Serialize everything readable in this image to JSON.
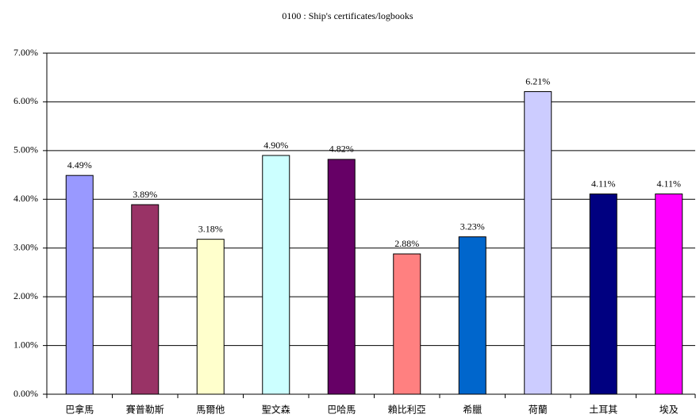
{
  "chart_data": {
    "type": "bar",
    "title": "0100 : Ship's certificates/logbooks",
    "categories": [
      "巴拿馬",
      "賽普勒斯",
      "馬爾他",
      "聖文森",
      "巴哈馬",
      "賴比利亞",
      "希臘",
      "荷蘭",
      "土耳其",
      "埃及"
    ],
    "values": [
      4.49,
      3.89,
      3.18,
      4.9,
      4.82,
      2.88,
      3.23,
      6.21,
      4.11,
      4.11
    ],
    "value_labels": [
      "4.49%",
      "3.89%",
      "3.18%",
      "4.90%",
      "4.82%",
      "2.88%",
      "3.23%",
      "6.21%",
      "4.11%",
      "4.11%"
    ],
    "colors": [
      "#9999ff",
      "#993366",
      "#ffffcc",
      "#ccffff",
      "#660066",
      "#ff8080",
      "#0066cc",
      "#ccccff",
      "#000080",
      "#ff00ff"
    ],
    "ylim": [
      0,
      7
    ],
    "yticks": [
      {
        "value": 0,
        "label": "0.00%"
      },
      {
        "value": 1,
        "label": "1.00%"
      },
      {
        "value": 2,
        "label": "2.00%"
      },
      {
        "value": 3,
        "label": "3.00%"
      },
      {
        "value": 4,
        "label": "4.00%"
      },
      {
        "value": 5,
        "label": "5.00%"
      },
      {
        "value": 6,
        "label": "6.00%"
      },
      {
        "value": 7,
        "label": "7.00%"
      }
    ],
    "grid": true
  }
}
